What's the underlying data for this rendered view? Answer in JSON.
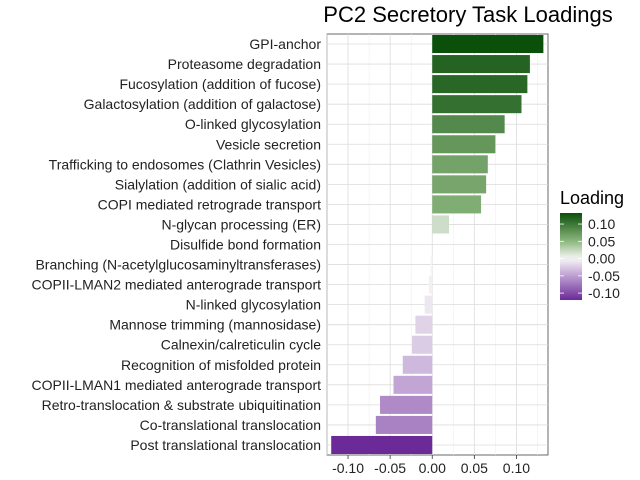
{
  "chart_data": {
    "type": "bar",
    "orientation": "horizontal",
    "title": "PC2 Secretory Task Loadings",
    "xlabel": "",
    "ylabel": "",
    "xlim": [
      -0.125,
      0.1375
    ],
    "x_ticks": [
      -0.1,
      -0.05,
      0.0,
      0.05,
      0.1
    ],
    "x_tick_labels": [
      "-0.10",
      "-0.05",
      "0.00",
      "0.05",
      "0.10"
    ],
    "grid": true,
    "categories": [
      "GPI-anchor",
      "Proteasome degradation",
      "Fucosylation (addition of fucose)",
      "Galactosylation (addition of galactose)",
      "O-linked glycosylation",
      "Vesicle secretion",
      "Trafficking to endosomes (Clathrin Vesicles)",
      "Sialylation (addition of sialic acid)",
      "COPI mediated retrograde transport",
      "N-glycan processing (ER)",
      "Disulfide bond formation",
      "Branching (N-acetylglucosaminyltransferases)",
      "COPII-LMAN2 mediated anterograde transport",
      "N-linked glycosylation",
      "Mannose trimming (mannosidase)",
      "Calnexin/calreticulin cycle",
      "Recognition of misfolded protein",
      "COPII-LMAN1 mediated anterograde transport",
      "Retro-translocation & substrate ubiquitination",
      "Co-translational translocation",
      "Post translational translocation"
    ],
    "values": [
      0.132,
      0.116,
      0.113,
      0.106,
      0.086,
      0.075,
      0.066,
      0.064,
      0.058,
      0.02,
      0.0,
      -0.002,
      -0.004,
      -0.009,
      -0.02,
      -0.024,
      -0.035,
      -0.046,
      -0.062,
      -0.067,
      -0.12
    ],
    "legend": {
      "title": "Loading",
      "placement": "right",
      "labels": [
        "0.10",
        "0.05",
        "0.00",
        "-0.05",
        "-0.10"
      ],
      "label_values": [
        0.1,
        0.05,
        0.0,
        -0.05,
        -0.1
      ],
      "range": [
        -0.12,
        0.132
      ],
      "colors": {
        "high": "#0a4f0a",
        "mid_high": "#8db77f",
        "mid": "#f7f7f7",
        "mid_low": "#c9afd9",
        "low": "#6b2a98"
      }
    }
  }
}
